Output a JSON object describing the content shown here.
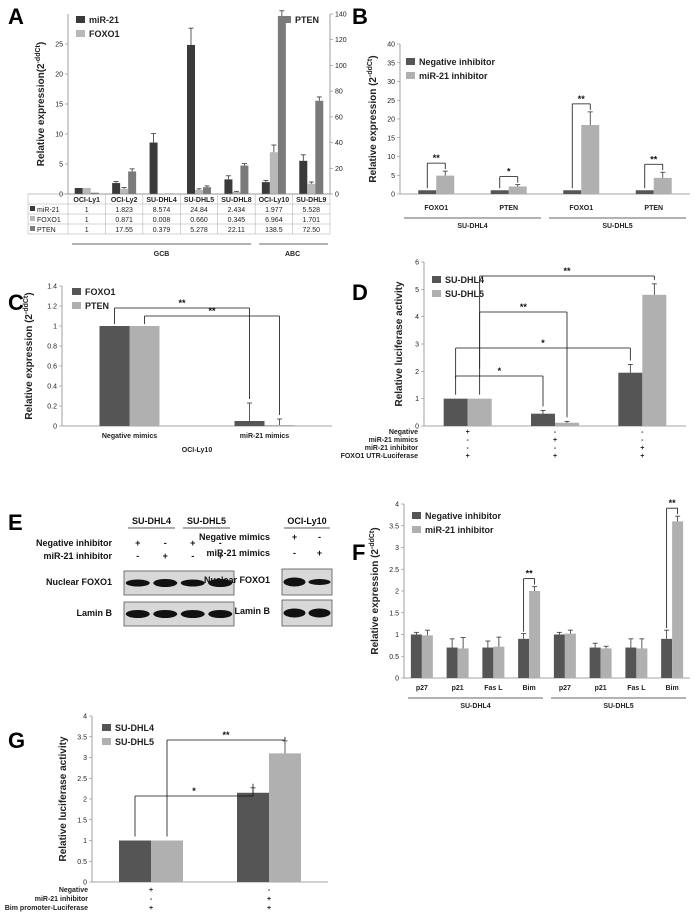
{
  "chart_data": [
    {
      "id": "A",
      "type": "bar",
      "panel_label": "A",
      "categories": [
        "OCI-Ly1",
        "OCI-Ly2",
        "SU-DHL4",
        "SU-DHL5",
        "SU-DHL8",
        "OCI-Ly10",
        "SU-DHL9"
      ],
      "series": [
        {
          "name": "miR-21",
          "axis": "left",
          "values": [
            1,
            1.823,
            8.574,
            24.84,
            2.434,
            1.977,
            5.528
          ],
          "err": [
            0,
            0.25,
            1.5,
            2.8,
            0.6,
            0.3,
            1.0
          ],
          "color": "#3a3a3a"
        },
        {
          "name": "FOXO1",
          "axis": "left",
          "values": [
            1,
            0.871,
            0.008,
            0.66,
            0.345,
            6.964,
            1.701
          ],
          "err": [
            0,
            0.2,
            0,
            0.2,
            0.1,
            1.2,
            0.3
          ],
          "color": "#b8b8b8"
        },
        {
          "name": "PTEN",
          "axis": "right",
          "values": [
            1,
            17.55,
            0.379,
            5.278,
            22.11,
            138.5,
            72.5
          ],
          "err": [
            0,
            2,
            0,
            1,
            1.5,
            4,
            3
          ],
          "color": "#7a7a7a"
        }
      ],
      "ylabel": "Relative expression(2",
      "ylabel_sup": "-ddCt",
      "ylabel_end": ")",
      "ylim": [
        0,
        30
      ],
      "y2lim": [
        0,
        140
      ],
      "yticks": [
        "0",
        "5",
        "10",
        "15",
        "20",
        "25"
      ],
      "y2ticks": [
        "0",
        "20",
        "40",
        "60",
        "80",
        "100",
        "120",
        "140"
      ],
      "table": {
        "rows": [
          {
            "name": "miR-21",
            "cells": [
              "1",
              "1.823",
              "8.574",
              "24.84",
              "2.434",
              "1.977",
              "5.528"
            ]
          },
          {
            "name": "FOXO1",
            "cells": [
              "1",
              "0.871",
              "0.008",
              "0.660",
              "0.345",
              "6.964",
              "1.701"
            ]
          },
          {
            "name": "PTEN",
            "cells": [
              "1",
              "17.55",
              "0.379",
              "5.278",
              "22.11",
              "138.5",
              "72.50"
            ]
          }
        ]
      },
      "groups": [
        "GCB",
        "ABC"
      ]
    },
    {
      "id": "B",
      "type": "bar",
      "panel_label": "B",
      "categories": [
        "FOXO1",
        "PTEN",
        "FOXO1",
        "PTEN"
      ],
      "groups": [
        "SU-DHL4",
        "SU-DHL5"
      ],
      "series": [
        {
          "name": "Negative inhibitor",
          "values": [
            1,
            1,
            1,
            1
          ],
          "err": [
            0,
            0,
            0,
            0
          ],
          "color": "#555555"
        },
        {
          "name": "miR-21 inhibitor",
          "values": [
            4.9,
            2.0,
            18.4,
            4.3
          ],
          "err": [
            1.2,
            0.5,
            3.5,
            1.5
          ],
          "color": "#b0b0b0"
        }
      ],
      "significance": [
        "**",
        "*",
        "**",
        "**"
      ],
      "ylabel": "Relative expression (2",
      "ylabel_sup": "-ddCt",
      "ylabel_end": ")",
      "ylim": [
        0,
        40
      ],
      "yticks": [
        "0",
        "5",
        "10",
        "15",
        "20",
        "25",
        "30",
        "35",
        "40"
      ]
    },
    {
      "id": "C",
      "type": "bar",
      "panel_label": "C",
      "categories": [
        "Negative mimics",
        "miR-21 mimics"
      ],
      "group": "OCI-Ly10",
      "series": [
        {
          "name": "FOXO1",
          "values": [
            1,
            0.05
          ],
          "err": [
            0,
            0.18
          ],
          "color": "#555555"
        },
        {
          "name": "PTEN",
          "values": [
            1,
            0.01
          ],
          "err": [
            0,
            0.06
          ],
          "color": "#b0b0b0"
        }
      ],
      "significance": [
        "**",
        "**"
      ],
      "ylabel": "Relative expression (2",
      "ylabel_sup": "-ddCt",
      "ylabel_end": ")",
      "ylim": [
        0,
        1.4
      ],
      "yticks": [
        "0",
        "0.2",
        "0.4",
        "0.6",
        "0.8",
        "1",
        "1.2",
        "1.4"
      ]
    },
    {
      "id": "D",
      "type": "bar",
      "panel_label": "D",
      "conditions": [
        {
          "name": "Negative",
          "cells": [
            "+",
            "-",
            "-"
          ]
        },
        {
          "name": "miR-21 mimics",
          "cells": [
            "-",
            "+",
            "-"
          ]
        },
        {
          "name": "miR-21 inhibitor",
          "cells": [
            "-",
            "-",
            "+"
          ]
        },
        {
          "name": "FOXO1 UTR-Luciferase",
          "cells": [
            "+",
            "+",
            "+"
          ]
        }
      ],
      "series": [
        {
          "name": "SU-DHL4",
          "values": [
            1,
            0.45,
            1.95
          ],
          "err": [
            0,
            0.12,
            0.3
          ],
          "color": "#555555"
        },
        {
          "name": "SU-DHL5",
          "values": [
            1,
            0.12,
            4.8
          ],
          "err": [
            0,
            0.05,
            0.4
          ],
          "color": "#b0b0b0"
        }
      ],
      "significance": [
        "*",
        "**",
        "*",
        "**"
      ],
      "ylabel": "Relative luciferase activity",
      "ylim": [
        0,
        6
      ],
      "yticks": [
        "0",
        "1",
        "2",
        "3",
        "4",
        "5",
        "6"
      ]
    },
    {
      "id": "F",
      "type": "bar",
      "panel_label": "F",
      "categories": [
        "p27",
        "p21",
        "Fas L",
        "Bim",
        "p27",
        "p21",
        "Fas L",
        "Bim"
      ],
      "groups": [
        "SU-DHL4",
        "SU-DHL5"
      ],
      "series": [
        {
          "name": "Negative inhibitor",
          "values": [
            1,
            0.7,
            0.7,
            0.9,
            1,
            0.7,
            0.7,
            0.9
          ],
          "err": [
            0.05,
            0.2,
            0.15,
            0.12,
            0.05,
            0.1,
            0.2,
            0.2
          ],
          "color": "#555555"
        },
        {
          "name": "miR-21 inhibitor",
          "values": [
            0.98,
            0.68,
            0.72,
            2.0,
            1.02,
            0.68,
            0.68,
            3.6
          ],
          "err": [
            0.12,
            0.25,
            0.22,
            0.1,
            0.08,
            0.05,
            0.22,
            0.12
          ],
          "color": "#b0b0b0"
        }
      ],
      "significance": [
        "**",
        "**"
      ],
      "ylabel": "Relative expression (2",
      "ylabel_sup": "-ddCt",
      "ylabel_end": ")",
      "ylim": [
        0,
        4
      ],
      "yticks": [
        "0",
        "0.5",
        "1",
        "1.5",
        "2",
        "2.5",
        "3",
        "3.5",
        "4"
      ]
    },
    {
      "id": "G",
      "type": "bar",
      "panel_label": "G",
      "conditions": [
        {
          "name": "Negative",
          "cells": [
            "+",
            "-"
          ]
        },
        {
          "name": "miR-21 inhibitor",
          "cells": [
            "-",
            "+"
          ]
        },
        {
          "name": "Bim promoter-Luciferase",
          "cells": [
            "+",
            "+"
          ]
        }
      ],
      "series": [
        {
          "name": "SU-DHL4",
          "values": [
            1,
            2.15
          ],
          "err": [
            0,
            0.12
          ],
          "color": "#555555"
        },
        {
          "name": "SU-DHL5",
          "values": [
            1,
            3.1
          ],
          "err": [
            0,
            0.3
          ],
          "color": "#b0b0b0"
        }
      ],
      "significance": [
        "*",
        "**"
      ],
      "ylabel": "Relative luciferase activity",
      "ylim": [
        0,
        4
      ],
      "yticks": [
        "0",
        "0.5",
        "1",
        "1.5",
        "2",
        "2.5",
        "3",
        "3.5",
        "4"
      ]
    }
  ],
  "panel_e": {
    "label": "E",
    "left": {
      "col_headers": [
        "SU-DHL4",
        "SU-DHL5"
      ],
      "rows": [
        {
          "name": "Negative inhibitor",
          "cells": [
            "+",
            "-",
            "+",
            "-"
          ]
        },
        {
          "name": "miR-21 inhibitor",
          "cells": [
            "-",
            "+",
            "-",
            "+"
          ]
        }
      ],
      "bands": [
        "Nuclear FOXO1",
        "Lamin B"
      ]
    },
    "right": {
      "col_header": "OCI-Ly10",
      "rows": [
        {
          "name": "Negative mimics",
          "cells": [
            "+",
            "-"
          ]
        },
        {
          "name": "miR-21 mimics",
          "cells": [
            "-",
            "+"
          ]
        }
      ],
      "bands": [
        "Nuclear FOXO1",
        "Lamin B"
      ]
    }
  }
}
